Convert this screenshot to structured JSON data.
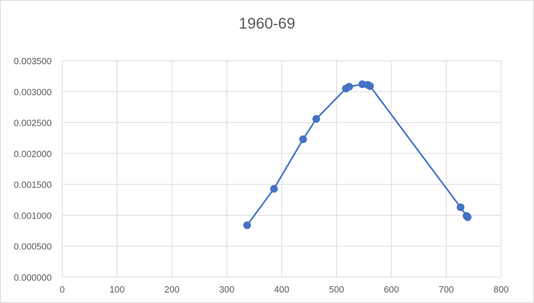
{
  "chart_data": {
    "type": "scatter",
    "title": "1960-69",
    "xlabel": "",
    "ylabel": "",
    "xlim": [
      0,
      800
    ],
    "ylim": [
      0,
      0.0035
    ],
    "x_ticks": [
      "0",
      "100",
      "200",
      "300",
      "400",
      "500",
      "600",
      "700",
      "800"
    ],
    "y_ticks": [
      "0.000000",
      "0.000500",
      "0.001000",
      "0.001500",
      "0.002000",
      "0.002500",
      "0.003000",
      "0.003500"
    ],
    "grid": true,
    "legend": "none",
    "series": [
      {
        "color": "#4472c4",
        "line": true,
        "points": [
          {
            "x": 337,
            "y": 0.00084
          },
          {
            "x": 386,
            "y": 0.00143
          },
          {
            "x": 439,
            "y": 0.00223
          },
          {
            "x": 463,
            "y": 0.00256
          },
          {
            "x": 517,
            "y": 0.00305
          },
          {
            "x": 523,
            "y": 0.00308
          },
          {
            "x": 547,
            "y": 0.00312
          },
          {
            "x": 557,
            "y": 0.00311
          },
          {
            "x": 561,
            "y": 0.00309
          },
          {
            "x": 726,
            "y": 0.00113
          },
          {
            "x": 737,
            "y": 0.00099
          },
          {
            "x": 739,
            "y": 0.00097
          }
        ]
      }
    ]
  }
}
